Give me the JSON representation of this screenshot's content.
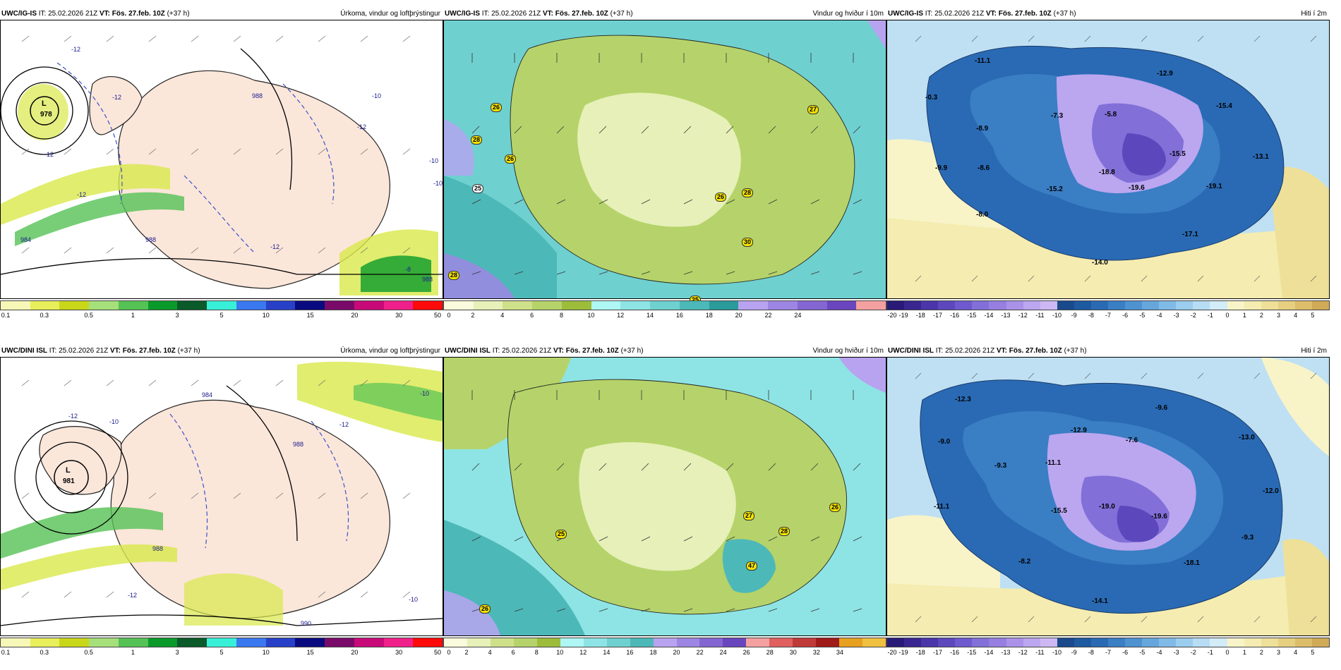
{
  "rows": [
    {
      "model": "UWC/IG-IS",
      "it_label": "IT:",
      "it": "25.02.2026 21Z",
      "vt_label": "VT:",
      "vt": "Fös. 27.feb. 10Z",
      "lead": "(+37 h)",
      "panels": [
        {
          "kind": "precip",
          "title": "Úrkoma, vindur og loftþrýstingur",
          "low": {
            "letter": "L",
            "value": "978"
          },
          "pressure_labels": [
            "-12",
            "-12",
            "-12",
            "-10",
            "-12",
            "-10",
            "-10",
            "-12",
            "-12",
            "988",
            "988",
            "984",
            "988",
            "-8"
          ]
        },
        {
          "kind": "wind",
          "title": "Vindur og hviður í 10m",
          "gusts": [
            "26",
            "28",
            "26",
            "27",
            "26",
            "28",
            "30",
            "28",
            "25",
            "25"
          ]
        },
        {
          "kind": "temp",
          "title": "Hiti í 2m",
          "temps": [
            "-11.1",
            "-0.3",
            "-8.9",
            "-9.9",
            "-8.6",
            "-8.0",
            "-7.3",
            "-5.8",
            "-12.9",
            "-15.4",
            "-15.2",
            "-18.8",
            "-15.5",
            "-19.6",
            "-19.1",
            "-13.1",
            "-17.1",
            "-14.0"
          ]
        }
      ]
    },
    {
      "model": "UWC/DINI ISL",
      "it_label": "IT:",
      "it": "25.02.2026 21Z",
      "vt_label": "VT:",
      "vt": "Fös. 27.feb. 10Z",
      "lead": "(+37 h)",
      "panels": [
        {
          "kind": "precip",
          "title": "Úrkoma, vindur og loftþrýstingur",
          "low": {
            "letter": "L",
            "value": "981"
          },
          "pressure_labels": [
            "-12",
            "-10",
            "-12",
            "-12",
            "-10",
            "988",
            "984",
            "988",
            "990",
            "-10"
          ]
        },
        {
          "kind": "wind",
          "title": "Vindur og hviður í 10m",
          "gusts": [
            "27",
            "26",
            "28",
            "47",
            "25",
            "26"
          ]
        },
        {
          "kind": "temp",
          "title": "Hiti í 2m",
          "temps": [
            "-12.3",
            "-9.6",
            "-9.0",
            "-9.3",
            "-12.9",
            "-7.6",
            "-13.0",
            "-11.1",
            "-12.0",
            "-11.1",
            "-15.5",
            "-19.0",
            "-19.6",
            "-9.3",
            "-8.2",
            "-18.1",
            "-14.1"
          ]
        }
      ]
    }
  ],
  "colorbars": {
    "precip": {
      "labels": [
        "0.1",
        "0.3",
        "0.5",
        "1",
        "3",
        "5",
        "10",
        "15",
        "20",
        "30",
        "50"
      ],
      "colors": [
        "#f7f7b8",
        "#e8ef5a",
        "#c9d71a",
        "#a6e07a",
        "#55c255",
        "#0a9a2a",
        "#0a5a2a",
        "#38f0d8",
        "#3a78f0",
        "#2840c8",
        "#0a0a80",
        "#7a0a6a",
        "#c80a78",
        "#f0208a",
        "#ff0a0a"
      ]
    },
    "wind_top": {
      "labels": [
        "0",
        "2",
        "4",
        "6",
        "8",
        "10",
        "12",
        "14",
        "16",
        "18",
        "20",
        "22",
        "24"
      ],
      "colors": [
        "#fafadc",
        "#e6f0b8",
        "#cfe08a",
        "#b5d36a",
        "#9dbd3a",
        "#aef7f4",
        "#8ee4e4",
        "#6fd0d0",
        "#4db8b8",
        "#2a9a9a",
        "#b8a3f0",
        "#9d86e3",
        "#8466d2",
        "#6a46be",
        "#f5a0a0"
      ]
    },
    "wind_bottom": {
      "labels": [
        "0",
        "2",
        "4",
        "6",
        "8",
        "10",
        "12",
        "14",
        "16",
        "18",
        "20",
        "22",
        "24",
        "26",
        "28",
        "30",
        "32",
        "34"
      ],
      "colors": [
        "#fafadc",
        "#e6f0b8",
        "#cfe08a",
        "#b5d36a",
        "#9dbd3a",
        "#aef7f4",
        "#8ee4e4",
        "#6fd0d0",
        "#4db8b8",
        "#b8a3f0",
        "#9d86e3",
        "#8466d2",
        "#6a46be",
        "#f5a0a0",
        "#e06060",
        "#c03a3a",
        "#a01a1a",
        "#e8a020",
        "#f0c040"
      ]
    },
    "temp": {
      "labels": [
        "-20",
        "-19",
        "-18",
        "-17",
        "-16",
        "-15",
        "-14",
        "-13",
        "-12",
        "-11",
        "-10",
        "-9",
        "-8",
        "-7",
        "-6",
        "-5",
        "-4",
        "-3",
        "-2",
        "-1",
        "0",
        "1",
        "2",
        "3",
        "4",
        "5"
      ],
      "colors": [
        "#2a1a78",
        "#3a2690",
        "#4a36a8",
        "#5c48bc",
        "#6e5ace",
        "#8270d8",
        "#967fe0",
        "#aa92e8",
        "#bba6f0",
        "#cdb8f4",
        "#1a4a8c",
        "#1e5aa0",
        "#2a6ab4",
        "#3a7ec4",
        "#4e92d0",
        "#66a6dc",
        "#80bae6",
        "#9acdee",
        "#b6ddf4",
        "#d2ecf8",
        "#f8f4c8",
        "#f4ecb0",
        "#eee098",
        "#e6d080",
        "#dcbe6a",
        "#d0aa56"
      ]
    }
  },
  "colors": {
    "land_precip": "#fbe6da",
    "sea_precip": "#ffffff",
    "temp_sea": "#bfe0f3",
    "wind_sea": "#4db8b8"
  }
}
